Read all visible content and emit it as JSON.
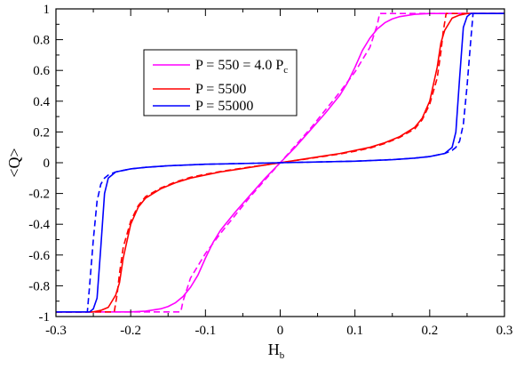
{
  "chart_data": {
    "type": "line",
    "title": "",
    "xlabel": "H",
    "xlabel_subscript": "b",
    "ylabel": "<Q>",
    "xlim": [
      -0.3,
      0.3
    ],
    "ylim": [
      -1,
      1
    ],
    "x_ticks": [
      -0.3,
      -0.2,
      -0.1,
      0,
      0.1,
      0.2,
      0.3
    ],
    "x_tick_labels": [
      "-0.3",
      "-0.2",
      "-0.1",
      "0",
      "0.1",
      "0.2",
      "0.3"
    ],
    "y_ticks": [
      -1,
      -0.8,
      -0.6,
      -0.4,
      -0.2,
      0,
      0.2,
      0.4,
      0.6,
      0.8,
      1
    ],
    "y_tick_labels": [
      "-1",
      "-0.8",
      "-0.6",
      "-0.4",
      "-0.2",
      "0",
      "0.2",
      "0.4",
      "0.6",
      "0.8",
      "1"
    ],
    "grid": false,
    "legend_position": "upper-left-center",
    "legend": [
      {
        "label": "P = 550 = 4.0 P",
        "subscript": "c",
        "color": "#ff00ff"
      },
      {
        "label": "P = 5500",
        "subscript": "",
        "color": "#ff0000"
      },
      {
        "label": "P = 55000",
        "subscript": "",
        "color": "#0000ff"
      }
    ],
    "series": [
      {
        "name": "P = 550 = 4.0 Pc",
        "style": "solid",
        "color": "#ff00ff",
        "x": [
          -0.3,
          -0.2,
          -0.18,
          -0.16,
          -0.15,
          -0.14,
          -0.13,
          -0.12,
          -0.11,
          -0.1,
          -0.09,
          -0.08,
          -0.06,
          -0.04,
          -0.02,
          0,
          0.02,
          0.04,
          0.06,
          0.08,
          0.09,
          0.1,
          0.11,
          0.12,
          0.13,
          0.14,
          0.15,
          0.16,
          0.18,
          0.2,
          0.3
        ],
        "y": [
          -0.97,
          -0.97,
          -0.965,
          -0.95,
          -0.935,
          -0.91,
          -0.87,
          -0.81,
          -0.73,
          -0.62,
          -0.52,
          -0.44,
          -0.32,
          -0.21,
          -0.1,
          0,
          0.1,
          0.21,
          0.32,
          0.44,
          0.52,
          0.62,
          0.73,
          0.81,
          0.87,
          0.91,
          0.935,
          0.95,
          0.965,
          0.97,
          0.97
        ]
      },
      {
        "name": "P = 550 = 4.0 Pc (dashed)",
        "style": "dashed",
        "color": "#ff00ff",
        "x": [
          -0.3,
          -0.133,
          -0.13,
          -0.12,
          -0.1,
          -0.08,
          -0.06,
          -0.04,
          -0.02,
          0,
          0.02,
          0.04,
          0.06,
          0.08,
          0.1,
          0.12,
          0.13,
          0.133,
          0.3
        ],
        "y": [
          -0.97,
          -0.97,
          -0.9,
          -0.75,
          -0.59,
          -0.46,
          -0.34,
          -0.22,
          -0.11,
          0,
          0.11,
          0.22,
          0.34,
          0.46,
          0.59,
          0.75,
          0.9,
          0.97,
          0.97
        ]
      },
      {
        "name": "P = 5500",
        "style": "solid",
        "color": "#ff0000",
        "x": [
          -0.3,
          -0.25,
          -0.24,
          -0.23,
          -0.22,
          -0.215,
          -0.21,
          -0.2,
          -0.19,
          -0.18,
          -0.16,
          -0.14,
          -0.12,
          -0.1,
          -0.08,
          -0.06,
          -0.04,
          -0.02,
          0,
          0.02,
          0.04,
          0.06,
          0.08,
          0.1,
          0.12,
          0.14,
          0.16,
          0.18,
          0.19,
          0.2,
          0.21,
          0.215,
          0.22,
          0.23,
          0.24,
          0.25,
          0.3
        ],
        "y": [
          -0.97,
          -0.97,
          -0.96,
          -0.94,
          -0.86,
          -0.78,
          -0.62,
          -0.4,
          -0.29,
          -0.23,
          -0.17,
          -0.13,
          -0.1,
          -0.08,
          -0.06,
          -0.045,
          -0.03,
          -0.015,
          0,
          0.015,
          0.03,
          0.045,
          0.06,
          0.08,
          0.1,
          0.13,
          0.17,
          0.23,
          0.29,
          0.4,
          0.62,
          0.78,
          0.86,
          0.94,
          0.96,
          0.97,
          0.97
        ]
      },
      {
        "name": "P = 5500 (dashed)",
        "style": "dashed",
        "color": "#ff0000",
        "x": [
          -0.3,
          -0.222,
          -0.218,
          -0.215,
          -0.21,
          -0.2,
          -0.19,
          -0.18,
          -0.16,
          -0.14,
          -0.12,
          -0.1,
          -0.08,
          -0.06,
          -0.04,
          -0.02,
          0,
          0.02,
          0.04,
          0.06,
          0.08,
          0.1,
          0.12,
          0.14,
          0.16,
          0.18,
          0.19,
          0.2,
          0.21,
          0.215,
          0.218,
          0.222,
          0.3
        ],
        "y": [
          -0.97,
          -0.97,
          -0.85,
          -0.72,
          -0.55,
          -0.38,
          -0.28,
          -0.22,
          -0.165,
          -0.125,
          -0.095,
          -0.075,
          -0.057,
          -0.042,
          -0.028,
          -0.014,
          0,
          0.014,
          0.028,
          0.042,
          0.057,
          0.075,
          0.095,
          0.125,
          0.165,
          0.22,
          0.28,
          0.38,
          0.55,
          0.72,
          0.85,
          0.97,
          0.97
        ]
      },
      {
        "name": "P = 55000",
        "style": "solid",
        "color": "#0000ff",
        "x": [
          -0.3,
          -0.255,
          -0.25,
          -0.245,
          -0.24,
          -0.235,
          -0.23,
          -0.22,
          -0.2,
          -0.18,
          -0.15,
          -0.1,
          -0.05,
          0,
          0.05,
          0.1,
          0.15,
          0.18,
          0.2,
          0.22,
          0.23,
          0.235,
          0.24,
          0.245,
          0.25,
          0.255,
          0.3
        ],
        "y": [
          -0.97,
          -0.97,
          -0.95,
          -0.88,
          -0.55,
          -0.2,
          -0.1,
          -0.06,
          -0.04,
          -0.03,
          -0.02,
          -0.01,
          -0.005,
          0,
          0.005,
          0.01,
          0.02,
          0.03,
          0.04,
          0.06,
          0.1,
          0.2,
          0.55,
          0.88,
          0.95,
          0.97,
          0.97
        ]
      },
      {
        "name": "P = 55000 (dashed)",
        "style": "dashed",
        "color": "#0000ff",
        "x": [
          -0.3,
          -0.258,
          -0.255,
          -0.25,
          -0.245,
          -0.24,
          -0.235,
          -0.23,
          -0.22,
          -0.2,
          -0.18,
          -0.15,
          -0.1,
          -0.05,
          0,
          0.05,
          0.1,
          0.15,
          0.18,
          0.2,
          0.22,
          0.23,
          0.235,
          0.24,
          0.245,
          0.25,
          0.255,
          0.258,
          0.3
        ],
        "y": [
          -0.97,
          -0.97,
          -0.8,
          -0.5,
          -0.25,
          -0.14,
          -0.1,
          -0.08,
          -0.06,
          -0.04,
          -0.03,
          -0.02,
          -0.01,
          -0.005,
          0,
          0.005,
          0.01,
          0.02,
          0.03,
          0.04,
          0.06,
          0.08,
          0.1,
          0.14,
          0.25,
          0.5,
          0.8,
          0.97,
          0.97
        ]
      }
    ]
  }
}
